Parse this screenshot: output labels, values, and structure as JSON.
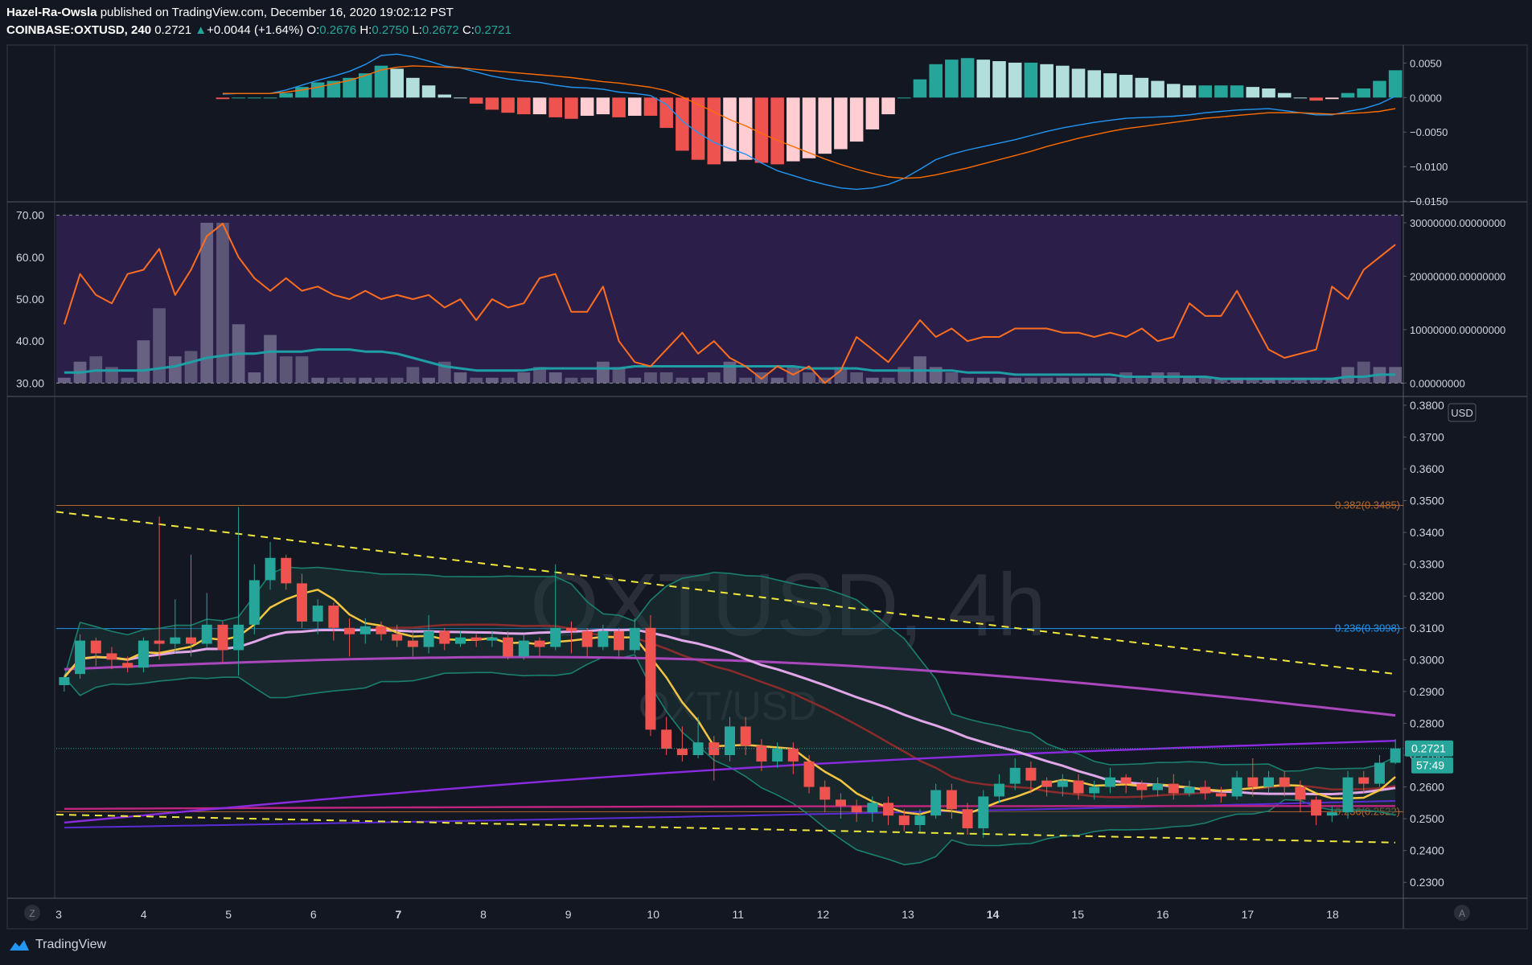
{
  "header": {
    "author": "Hazel-Ra-Owsla",
    "published": " published on TradingView.com, December 16, 2020 19:02:12 PST",
    "symbol": "COINBASE:OXTUSD, 240",
    "last": "0.2721",
    "change": "+0.0044 (+1.64%)",
    "o_label": "O:",
    "o": "0.2676",
    "h_label": "H:",
    "h": "0.2750",
    "l_label": "L:",
    "l": "0.2672",
    "c_label": "C:",
    "c": "0.2721"
  },
  "watermark": {
    "main": "OXTUSD, 4h",
    "sub": "OXT/USD"
  },
  "footer": {
    "brand": "TradingView"
  },
  "buttons": {
    "zoom": "Z",
    "auto": "A"
  },
  "colors": {
    "bg": "#131722",
    "up": "#26a69a",
    "down": "#ef5350",
    "orange": "#ff6d00",
    "blue": "#2196f3",
    "yellow": "#f2e73b",
    "rsi_band": "#2b1f4a",
    "fib_orange": "#b36a2e"
  },
  "chart_data": [
    {
      "type": "bar",
      "panel": "MACD",
      "yaxis_ticks": [
        "0.0050",
        "0.0000",
        "−0.0050",
        "−0.0100",
        "−0.0150"
      ],
      "ylim": [
        -0.015,
        0.0075
      ],
      "series": [
        {
          "kind": "macd",
          "values": [
            0.0005,
            0.0006,
            0.0006,
            0.0006,
            0.0011,
            0.0018,
            0.0025,
            0.0031,
            0.0038,
            0.0048,
            0.0061,
            0.0063,
            0.0059,
            0.0053,
            0.0046,
            0.0043,
            0.0037,
            0.0031,
            0.0027,
            0.0024,
            0.0022,
            0.0018,
            0.0015,
            0.0014,
            0.0012,
            0.0008,
            0.0006,
            0.0003,
            -0.001,
            -0.0034,
            -0.0051,
            -0.0065,
            -0.0074,
            -0.0082,
            -0.0095,
            -0.0106,
            -0.0113,
            -0.012,
            -0.0126,
            -0.0131,
            -0.0133,
            -0.0131,
            -0.0126,
            -0.0117,
            -0.0104,
            -0.009,
            -0.0082,
            -0.0076,
            -0.0071,
            -0.0066,
            -0.0061,
            -0.0055,
            -0.0049,
            -0.0044,
            -0.004,
            -0.0036,
            -0.0033,
            -0.003,
            -0.0029,
            -0.0028,
            -0.0027,
            -0.0025,
            -0.0022,
            -0.002,
            -0.0018,
            -0.0017,
            -0.0016,
            -0.0019,
            -0.0022,
            -0.0025,
            -0.0025,
            -0.002,
            -0.0016,
            -0.0009,
            0.0002
          ]
        },
        {
          "kind": "signal",
          "values": [
            0.0006,
            0.0006,
            0.0006,
            0.0006,
            0.0008,
            0.0011,
            0.0015,
            0.002,
            0.0025,
            0.0032,
            0.004,
            0.0044,
            0.0046,
            0.0045,
            0.0044,
            0.0043,
            0.0041,
            0.0039,
            0.0037,
            0.0035,
            0.0033,
            0.0031,
            0.0029,
            0.0026,
            0.0023,
            0.0021,
            0.0018,
            0.0015,
            0.001,
            0.0001,
            -0.001,
            -0.0021,
            -0.0032,
            -0.0041,
            -0.0052,
            -0.0062,
            -0.0071,
            -0.008,
            -0.0089,
            -0.0097,
            -0.0104,
            -0.011,
            -0.0115,
            -0.0117,
            -0.0116,
            -0.0112,
            -0.0107,
            -0.0102,
            -0.0096,
            -0.009,
            -0.0084,
            -0.0078,
            -0.0071,
            -0.0065,
            -0.0059,
            -0.0054,
            -0.0049,
            -0.0045,
            -0.0042,
            -0.0039,
            -0.0036,
            -0.0033,
            -0.003,
            -0.0028,
            -0.0026,
            -0.0024,
            -0.0022,
            -0.0022,
            -0.0022,
            -0.0023,
            -0.0024,
            -0.0023,
            -0.0022,
            -0.002,
            -0.0016
          ]
        }
      ]
    },
    {
      "type": "line",
      "panel": "RSI + Volume",
      "yaxis_ticks_left": [
        "70.00",
        "60.00",
        "50.00",
        "40.00",
        "30.00"
      ],
      "yaxis_ticks_right": [
        "30000000.00000000",
        "20000000.00000000",
        "10000000.00000000",
        "0.00000000"
      ],
      "band": [
        30,
        70
      ],
      "ylim_left": [
        27,
        73
      ],
      "series": [
        {
          "kind": "rsi",
          "values": [
            44,
            56,
            51,
            49,
            56,
            57,
            62,
            51,
            57,
            65,
            68,
            60,
            55,
            52,
            55,
            52,
            53,
            51,
            50,
            52,
            50,
            51,
            50,
            51,
            48,
            50,
            45,
            50,
            48,
            49,
            55,
            56,
            47,
            47,
            53,
            40,
            35,
            34,
            38,
            42,
            37,
            40,
            36,
            34,
            31,
            34,
            32,
            34,
            30,
            33,
            41,
            38,
            35,
            40,
            45,
            41,
            43,
            40,
            41,
            41,
            43,
            43,
            43,
            42,
            42,
            41,
            42,
            41,
            43,
            40,
            41,
            49,
            46,
            46,
            52,
            45,
            38,
            36,
            37,
            38,
            53,
            50,
            57,
            60,
            63
          ]
        },
        {
          "kind": "rsi_ma",
          "values": [
            32.5,
            32.5,
            33,
            33,
            33,
            33,
            33.5,
            34,
            35,
            36,
            36.5,
            37,
            37,
            37.5,
            37.5,
            37.5,
            38,
            38,
            38,
            37.5,
            37.5,
            37,
            36,
            35,
            34,
            33.5,
            33,
            33,
            33,
            33,
            33.5,
            33.5,
            33.5,
            33.5,
            33.5,
            33.5,
            34,
            34,
            34,
            34,
            34,
            34,
            34,
            34,
            34,
            34,
            34,
            33.5,
            33.5,
            33.5,
            33.5,
            33,
            33,
            33,
            33,
            33,
            33,
            32.5,
            32.5,
            32.5,
            32,
            32,
            32,
            32,
            32,
            32,
            32,
            31.5,
            31.5,
            31.5,
            31.5,
            31.5,
            31.5,
            31,
            31,
            31,
            31,
            31,
            31,
            31,
            31,
            31.5,
            31.5,
            32,
            32
          ]
        },
        {
          "kind": "volume",
          "values": [
            1,
            4,
            5,
            3,
            1,
            8,
            14,
            5,
            6,
            30,
            30,
            11,
            2,
            9,
            5,
            5,
            1,
            1,
            1,
            1,
            1,
            1,
            3,
            1,
            4,
            2,
            1,
            1,
            1,
            2,
            3,
            2,
            1,
            1,
            4,
            3,
            1,
            2,
            2,
            1,
            1,
            2,
            4,
            1,
            2,
            1,
            3,
            2,
            1,
            3,
            2,
            1,
            1,
            3,
            5,
            3,
            2,
            1,
            1,
            1,
            1,
            1,
            1,
            1,
            1,
            1,
            1,
            2,
            1,
            2,
            2,
            1,
            1,
            1,
            1,
            1,
            1,
            1,
            1,
            1,
            1,
            3,
            4,
            3,
            3
          ]
        }
      ]
    },
    {
      "type": "candlestick",
      "panel": "Price",
      "currency": "USD",
      "x_ticks": [
        "3",
        "4",
        "5",
        "6",
        "7",
        "8",
        "9",
        "10",
        "11",
        "12",
        "13",
        "14",
        "15",
        "16",
        "17",
        "18"
      ],
      "yaxis_ticks": [
        "0.3800",
        "0.3700",
        "0.3600",
        "0.3500",
        "0.3400",
        "0.3300",
        "0.3200",
        "0.3100",
        "0.3000",
        "0.2900",
        "0.2800",
        "0.2700",
        "0.2600",
        "0.2500",
        "0.2400",
        "0.2300"
      ],
      "ylim": [
        0.225,
        0.3825
      ],
      "last_price": "0.2721",
      "countdown": "57:49",
      "fib_levels": [
        {
          "label": "0.382(0.3485)",
          "value": 0.3485,
          "color": "#b36a2e"
        },
        {
          "label": "0.236(0.3098)",
          "value": 0.3098,
          "color": "#2196f3"
        },
        {
          "label": "0.236(0.2522)",
          "value": 0.2522,
          "color": "#b36a2e"
        }
      ],
      "trendlines": [
        {
          "from": [
            0,
            0.3465
          ],
          "to": [
            83,
            0.2955
          ]
        },
        {
          "from": [
            0,
            0.2513
          ],
          "to": [
            83,
            0.2425
          ]
        }
      ],
      "candles": [
        [
          0.292,
          0.2945,
          0.29,
          0.295
        ],
        [
          0.2955,
          0.306,
          0.294,
          0.308
        ],
        [
          0.306,
          0.302,
          0.298,
          0.307
        ],
        [
          0.302,
          0.3,
          0.297,
          0.304
        ],
        [
          0.299,
          0.2975,
          0.296,
          0.301
        ],
        [
          0.2975,
          0.306,
          0.296,
          0.307
        ],
        [
          0.306,
          0.305,
          0.3,
          0.345
        ],
        [
          0.305,
          0.307,
          0.302,
          0.319
        ],
        [
          0.307,
          0.305,
          0.301,
          0.333
        ],
        [
          0.305,
          0.311,
          0.304,
          0.321
        ],
        [
          0.311,
          0.303,
          0.299,
          0.312
        ],
        [
          0.303,
          0.311,
          0.295,
          0.348
        ],
        [
          0.311,
          0.325,
          0.308,
          0.33
        ],
        [
          0.325,
          0.332,
          0.322,
          0.337
        ],
        [
          0.332,
          0.324,
          0.322,
          0.333
        ],
        [
          0.324,
          0.312,
          0.31,
          0.327
        ],
        [
          0.312,
          0.317,
          0.308,
          0.319
        ],
        [
          0.317,
          0.31,
          0.306,
          0.318
        ],
        [
          0.31,
          0.308,
          0.301,
          0.313
        ],
        [
          0.308,
          0.3105,
          0.305,
          0.313
        ],
        [
          0.3105,
          0.308,
          0.306,
          0.312
        ],
        [
          0.308,
          0.306,
          0.304,
          0.311
        ],
        [
          0.306,
          0.304,
          0.301,
          0.309
        ],
        [
          0.304,
          0.309,
          0.302,
          0.314
        ],
        [
          0.309,
          0.305,
          0.303,
          0.31
        ],
        [
          0.305,
          0.307,
          0.304,
          0.309
        ],
        [
          0.307,
          0.306,
          0.304,
          0.308
        ],
        [
          0.306,
          0.307,
          0.304,
          0.309
        ],
        [
          0.307,
          0.301,
          0.3,
          0.309
        ],
        [
          0.301,
          0.306,
          0.3,
          0.308
        ],
        [
          0.306,
          0.304,
          0.301,
          0.307
        ],
        [
          0.304,
          0.31,
          0.303,
          0.33
        ],
        [
          0.31,
          0.309,
          0.302,
          0.312
        ],
        [
          0.309,
          0.304,
          0.301,
          0.31
        ],
        [
          0.304,
          0.309,
          0.303,
          0.311
        ],
        [
          0.309,
          0.303,
          0.301,
          0.31
        ],
        [
          0.303,
          0.31,
          0.302,
          0.313
        ],
        [
          0.31,
          0.278,
          0.276,
          0.314
        ],
        [
          0.278,
          0.272,
          0.27,
          0.282
        ],
        [
          0.272,
          0.27,
          0.268,
          0.279
        ],
        [
          0.27,
          0.274,
          0.269,
          0.282
        ],
        [
          0.274,
          0.27,
          0.262,
          0.276
        ],
        [
          0.27,
          0.279,
          0.268,
          0.282
        ],
        [
          0.279,
          0.273,
          0.27,
          0.282
        ],
        [
          0.273,
          0.268,
          0.265,
          0.275
        ],
        [
          0.268,
          0.272,
          0.266,
          0.274
        ],
        [
          0.272,
          0.268,
          0.264,
          0.274
        ],
        [
          0.268,
          0.26,
          0.258,
          0.27
        ],
        [
          0.26,
          0.256,
          0.252,
          0.262
        ],
        [
          0.256,
          0.254,
          0.25,
          0.258
        ],
        [
          0.254,
          0.252,
          0.249,
          0.256
        ],
        [
          0.252,
          0.255,
          0.249,
          0.257
        ],
        [
          0.255,
          0.251,
          0.248,
          0.257
        ],
        [
          0.251,
          0.248,
          0.246,
          0.253
        ],
        [
          0.248,
          0.251,
          0.246,
          0.253
        ],
        [
          0.251,
          0.259,
          0.25,
          0.261
        ],
        [
          0.259,
          0.253,
          0.25,
          0.261
        ],
        [
          0.253,
          0.247,
          0.245,
          0.255
        ],
        [
          0.247,
          0.257,
          0.244,
          0.259
        ],
        [
          0.257,
          0.261,
          0.255,
          0.264
        ],
        [
          0.261,
          0.266,
          0.259,
          0.269
        ],
        [
          0.266,
          0.262,
          0.258,
          0.268
        ],
        [
          0.262,
          0.26,
          0.257,
          0.263
        ],
        [
          0.26,
          0.262,
          0.257,
          0.264
        ],
        [
          0.262,
          0.258,
          0.256,
          0.264
        ],
        [
          0.258,
          0.26,
          0.256,
          0.262
        ],
        [
          0.26,
          0.263,
          0.258,
          0.266
        ],
        [
          0.263,
          0.261,
          0.258,
          0.264
        ],
        [
          0.261,
          0.259,
          0.256,
          0.262
        ],
        [
          0.259,
          0.261,
          0.257,
          0.263
        ],
        [
          0.261,
          0.258,
          0.256,
          0.264
        ],
        [
          0.258,
          0.26,
          0.257,
          0.262
        ],
        [
          0.26,
          0.258,
          0.256,
          0.262
        ],
        [
          0.258,
          0.257,
          0.255,
          0.26
        ],
        [
          0.257,
          0.263,
          0.256,
          0.265
        ],
        [
          0.263,
          0.26,
          0.257,
          0.269
        ],
        [
          0.26,
          0.263,
          0.258,
          0.265
        ],
        [
          0.263,
          0.26,
          0.257,
          0.265
        ],
        [
          0.26,
          0.256,
          0.252,
          0.262
        ],
        [
          0.256,
          0.251,
          0.248,
          0.257
        ],
        [
          0.251,
          0.252,
          0.249,
          0.254
        ],
        [
          0.252,
          0.263,
          0.25,
          0.265
        ],
        [
          0.263,
          0.261,
          0.258,
          0.265
        ],
        [
          0.261,
          0.2676,
          0.26,
          0.27
        ],
        [
          0.2676,
          0.2721,
          0.2672,
          0.275
        ]
      ]
    }
  ]
}
